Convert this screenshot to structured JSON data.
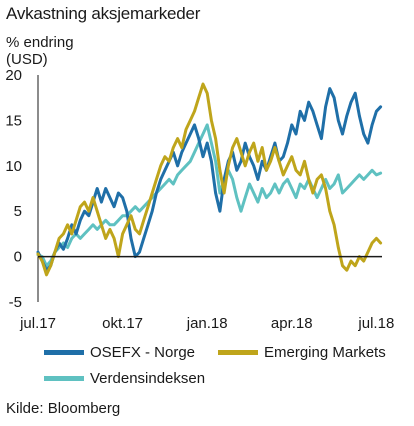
{
  "title": "Avkastning aksjemarkeder",
  "source": "Kilde: Bloomberg",
  "chart_data": {
    "type": "line",
    "title": "Avkastning aksjemarkeder",
    "ylabel_line1": "% endring",
    "ylabel_line2": "(USD)",
    "ylim": [
      -5,
      20
    ],
    "yticks": [
      "20",
      "15",
      "10",
      "5",
      "0",
      "-5"
    ],
    "ytick_values": [
      20,
      15,
      10,
      5,
      0,
      -5
    ],
    "xlim": [
      0,
      12.2
    ],
    "xticks": [
      "jul.17",
      "okt.17",
      "jan.18",
      "apr.18",
      "jul.18"
    ],
    "xtick_values": [
      0,
      3,
      6,
      9,
      12
    ],
    "x_unit": "months since start of July 2017",
    "legend_position": "bottom",
    "grid": false,
    "series": [
      {
        "name": "OSEFX - Norge",
        "color": "#1f6fa8",
        "x": [
          0,
          0.15,
          0.3,
          0.45,
          0.6,
          0.75,
          0.9,
          1.05,
          1.2,
          1.35,
          1.5,
          1.65,
          1.8,
          1.95,
          2.1,
          2.25,
          2.4,
          2.55,
          2.7,
          2.85,
          3.0,
          3.15,
          3.3,
          3.45,
          3.6,
          3.75,
          3.9,
          4.05,
          4.2,
          4.35,
          4.5,
          4.65,
          4.8,
          4.95,
          5.1,
          5.25,
          5.4,
          5.55,
          5.7,
          5.85,
          6.0,
          6.15,
          6.3,
          6.45,
          6.6,
          6.75,
          6.9,
          7.05,
          7.2,
          7.35,
          7.5,
          7.65,
          7.8,
          7.95,
          8.1,
          8.25,
          8.4,
          8.55,
          8.7,
          8.85,
          9.0,
          9.15,
          9.3,
          9.45,
          9.6,
          9.75,
          9.9,
          10.05,
          10.2,
          10.35,
          10.5,
          10.65,
          10.8,
          10.95,
          11.1,
          11.25,
          11.4,
          11.55,
          11.7,
          11.85,
          12.0,
          12.15
        ],
        "values": [
          0.5,
          -0.5,
          -1.5,
          -1.0,
          0.5,
          1.5,
          0.8,
          2.0,
          3.5,
          2.5,
          4.0,
          5.0,
          4.5,
          6.0,
          7.5,
          6.0,
          7.5,
          6.5,
          5.5,
          7.0,
          6.5,
          5.0,
          2.0,
          0.0,
          0.5,
          2.0,
          3.5,
          5.0,
          7.0,
          8.5,
          9.5,
          10.5,
          11.5,
          10.0,
          11.5,
          12.5,
          13.5,
          14.5,
          13.0,
          11.0,
          12.5,
          10.5,
          7.0,
          5.0,
          8.5,
          10.5,
          11.5,
          9.5,
          10.5,
          12.5,
          11.0,
          10.0,
          8.5,
          10.5,
          9.5,
          11.0,
          12.5,
          10.5,
          11.0,
          12.5,
          14.5,
          13.5,
          16.0,
          15.0,
          17.0,
          16.0,
          14.5,
          13.0,
          16.5,
          18.5,
          17.5,
          15.0,
          13.5,
          15.5,
          17.0,
          18.0,
          15.5,
          13.5,
          12.5,
          14.5,
          16.0,
          16.5
        ]
      },
      {
        "name": "Emerging Markets",
        "color": "#bfa51b",
        "x": [
          0,
          0.15,
          0.3,
          0.45,
          0.6,
          0.75,
          0.9,
          1.05,
          1.2,
          1.35,
          1.5,
          1.65,
          1.8,
          1.95,
          2.1,
          2.25,
          2.4,
          2.55,
          2.7,
          2.85,
          3.0,
          3.15,
          3.3,
          3.45,
          3.6,
          3.75,
          3.9,
          4.05,
          4.2,
          4.35,
          4.5,
          4.65,
          4.8,
          4.95,
          5.1,
          5.25,
          5.4,
          5.55,
          5.7,
          5.85,
          6.0,
          6.15,
          6.3,
          6.45,
          6.6,
          6.75,
          6.9,
          7.05,
          7.2,
          7.35,
          7.5,
          7.65,
          7.8,
          7.95,
          8.1,
          8.25,
          8.4,
          8.55,
          8.7,
          8.85,
          9.0,
          9.15,
          9.3,
          9.45,
          9.6,
          9.75,
          9.9,
          10.05,
          10.2,
          10.35,
          10.5,
          10.65,
          10.8,
          10.95,
          11.1,
          11.25,
          11.4,
          11.55,
          11.7,
          11.85,
          12.0,
          12.15
        ],
        "values": [
          0.3,
          -0.5,
          -2.0,
          -1.0,
          0.5,
          2.0,
          2.5,
          3.5,
          2.5,
          4.0,
          5.5,
          6.0,
          5.0,
          6.5,
          5.0,
          3.5,
          2.0,
          3.0,
          2.0,
          0.0,
          2.5,
          3.5,
          4.5,
          3.0,
          2.5,
          4.0,
          5.5,
          7.0,
          8.5,
          10.0,
          11.0,
          10.5,
          12.0,
          13.0,
          12.0,
          14.0,
          15.0,
          16.0,
          17.5,
          19.0,
          18.0,
          15.0,
          13.0,
          9.5,
          7.0,
          10.0,
          12.0,
          13.0,
          11.5,
          10.0,
          11.5,
          12.5,
          10.5,
          12.0,
          9.5,
          10.5,
          12.0,
          10.5,
          9.0,
          10.0,
          11.0,
          9.5,
          9.0,
          10.5,
          8.5,
          7.0,
          8.5,
          9.0,
          7.5,
          5.0,
          3.5,
          1.0,
          -1.0,
          -1.5,
          -0.5,
          -1.0,
          0.0,
          -0.5,
          0.5,
          1.5,
          2.0,
          1.5
        ]
      },
      {
        "name": "Verdensindeksen",
        "color": "#5fc1c1",
        "x": [
          0,
          0.15,
          0.3,
          0.45,
          0.6,
          0.75,
          0.9,
          1.05,
          1.2,
          1.35,
          1.5,
          1.65,
          1.8,
          1.95,
          2.1,
          2.25,
          2.4,
          2.55,
          2.7,
          2.85,
          3.0,
          3.15,
          3.3,
          3.45,
          3.6,
          3.75,
          3.9,
          4.05,
          4.2,
          4.35,
          4.5,
          4.65,
          4.8,
          4.95,
          5.1,
          5.25,
          5.4,
          5.55,
          5.7,
          5.85,
          6.0,
          6.15,
          6.3,
          6.45,
          6.6,
          6.75,
          6.9,
          7.05,
          7.2,
          7.35,
          7.5,
          7.65,
          7.8,
          7.95,
          8.1,
          8.25,
          8.4,
          8.55,
          8.7,
          8.85,
          9.0,
          9.15,
          9.3,
          9.45,
          9.6,
          9.75,
          9.9,
          10.05,
          10.2,
          10.35,
          10.5,
          10.65,
          10.8,
          10.95,
          11.1,
          11.25,
          11.4,
          11.55,
          11.7,
          11.85,
          12.0,
          12.15
        ],
        "values": [
          0.2,
          0.0,
          -1.0,
          -0.5,
          0.5,
          1.0,
          1.5,
          1.0,
          2.0,
          2.5,
          2.0,
          2.5,
          3.0,
          3.5,
          3.0,
          3.5,
          4.0,
          3.5,
          3.5,
          4.0,
          4.5,
          4.5,
          5.0,
          5.5,
          5.0,
          5.5,
          6.0,
          6.5,
          7.0,
          7.5,
          8.0,
          8.5,
          8.0,
          9.0,
          9.5,
          10.0,
          10.5,
          11.5,
          12.5,
          13.5,
          14.5,
          12.5,
          10.5,
          7.0,
          8.5,
          9.5,
          8.5,
          6.5,
          5.0,
          6.5,
          8.0,
          7.0,
          6.0,
          7.5,
          6.5,
          7.0,
          8.0,
          7.0,
          8.0,
          8.5,
          7.5,
          6.5,
          8.0,
          7.5,
          8.5,
          7.5,
          6.5,
          7.5,
          8.5,
          7.5,
          8.0,
          9.0,
          7.0,
          7.5,
          8.0,
          8.5,
          9.0,
          8.5,
          9.0,
          9.5,
          9.0,
          9.2
        ]
      }
    ]
  }
}
